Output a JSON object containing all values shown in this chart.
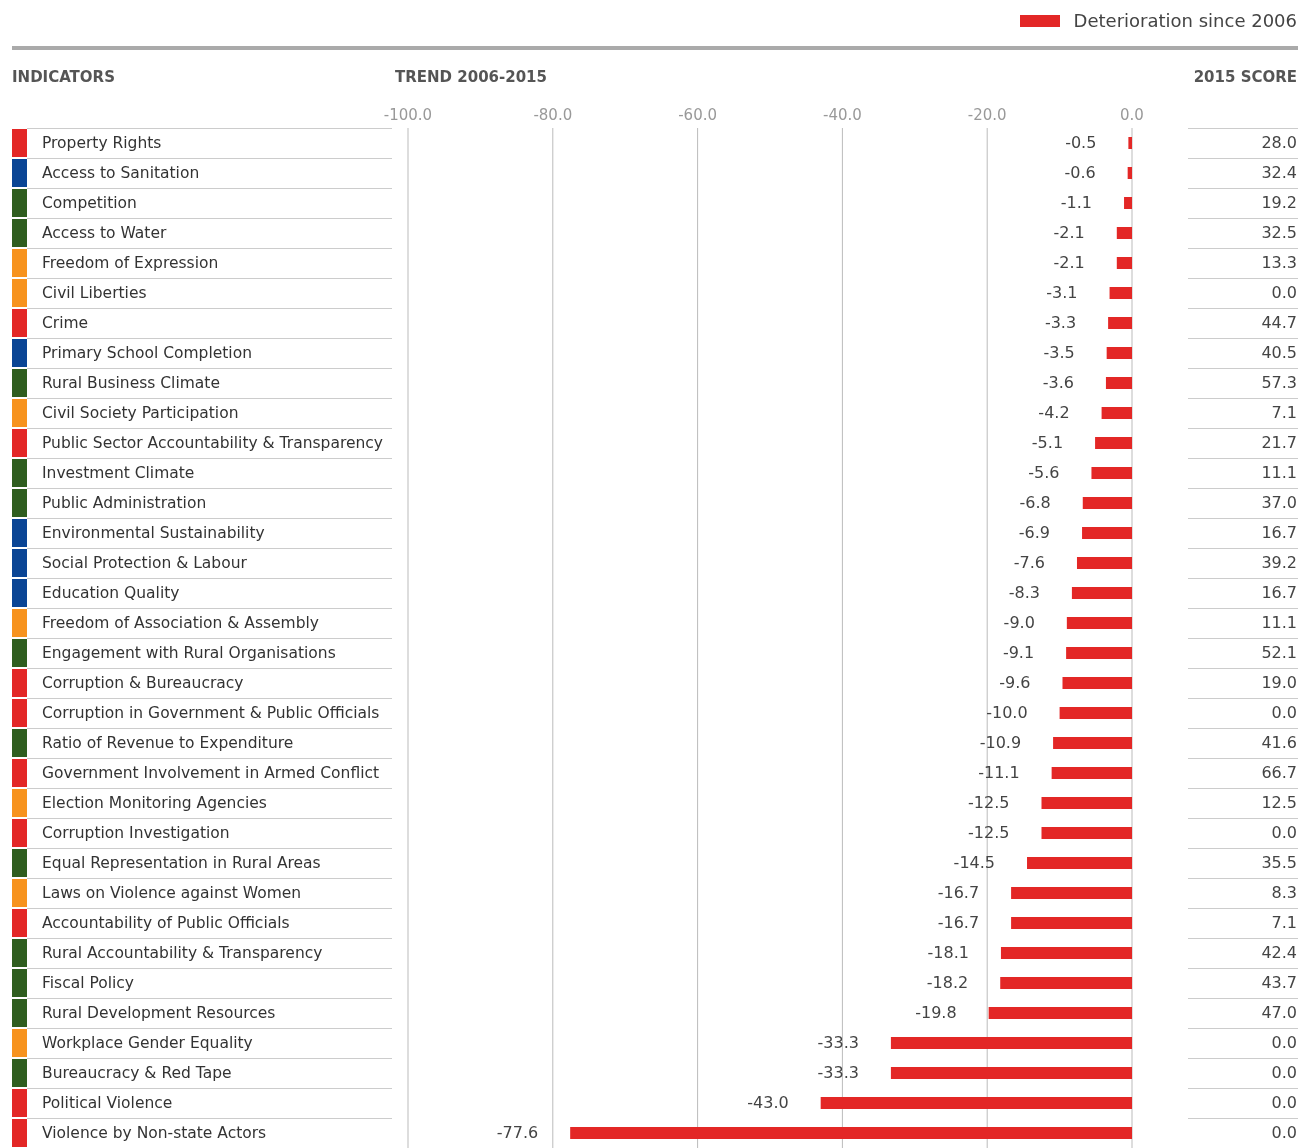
{
  "chart_data": [
    {
      "type": "bar",
      "orientation": "horizontal",
      "title": "TREND 2006-2015",
      "ylabel": "INDICATORS",
      "categories": [
        "Property Rights",
        "Access to Sanitation",
        "Competition",
        "Access to Water",
        "Freedom of Expression",
        "Civil Liberties",
        "Crime",
        "Primary School Completion",
        "Rural Business Climate",
        "Civil Society Participation",
        "Public Sector Accountability & Transparency",
        "Investment Climate",
        "Public Administration",
        "Environmental Sustainability",
        "Social Protection & Labour",
        "Education Quality",
        "Freedom of Association & Assembly",
        "Engagement with Rural Organisations",
        "Corruption & Bureaucracy",
        "Corruption in Government & Public Officials",
        "Ratio of Revenue to Expenditure",
        "Government Involvement in Armed Conflict",
        "Election Monitoring Agencies",
        "Corruption Investigation",
        "Equal Representation in Rural Areas",
        "Laws on Violence against Women",
        "Accountability of Public Officials",
        "Rural Accountability & Transparency",
        "Fiscal Policy",
        "Rural Development Resources",
        "Workplace Gender Equality",
        "Bureaucracy & Red Tape",
        "Political Violence",
        "Violence by Non-state Actors"
      ],
      "series": [
        {
          "name": "Deterioration since 2006",
          "color": "#e32726",
          "values": [
            -0.5,
            -0.6,
            -1.1,
            -2.1,
            -2.1,
            -3.1,
            -3.3,
            -3.5,
            -3.6,
            -4.2,
            -5.1,
            -5.6,
            -6.8,
            -6.9,
            -7.6,
            -8.3,
            -9.0,
            -9.1,
            -9.6,
            -10.0,
            -10.9,
            -11.1,
            -12.5,
            -12.5,
            -14.5,
            -16.7,
            -16.7,
            -18.1,
            -18.2,
            -19.8,
            -33.3,
            -33.3,
            -43.0,
            -77.6
          ],
          "value_labels": [
            "-0.5",
            "-0.6",
            "-1.1",
            "-2.1",
            "-2.1",
            "-3.1",
            "-3.3",
            "-3.5",
            "-3.6",
            "-4.2",
            "-5.1",
            "-5.6",
            "-6.8",
            "-6.9",
            "-7.6",
            "-8.3",
            "-9.0",
            "-9.1",
            "-9.6",
            "-10.0",
            "-10.9",
            "-11.1",
            "-12.5",
            "-12.5",
            "-14.5",
            "-16.7",
            "-16.7",
            "-18.1",
            "-18.2",
            "-19.8",
            "-33.3",
            "-33.3",
            "-43.0",
            "-77.6"
          ]
        }
      ],
      "xlim": [
        -100,
        0
      ],
      "xticks": [
        {
          "value": -100,
          "label": "-100.0"
        },
        {
          "value": -80,
          "label": "-80.0"
        },
        {
          "value": -60,
          "label": "-60.0"
        },
        {
          "value": -40,
          "label": "-40.0"
        },
        {
          "value": -20,
          "label": "-20.0"
        },
        {
          "value": 0,
          "label": "0.0"
        }
      ],
      "grid": "x",
      "legend": "top right"
    },
    {
      "type": "other",
      "title": "2015 SCORE",
      "value_labels": [
        "28.0",
        "32.4",
        "19.2",
        "32.5",
        "13.3",
        "0.0",
        "44.7",
        "40.5",
        "57.3",
        "7.1",
        "21.7",
        "11.1",
        "37.0",
        "16.7",
        "39.2",
        "16.7",
        "11.1",
        "52.1",
        "19.0",
        "0.0",
        "41.6",
        "66.7",
        "12.5",
        "0.0",
        "35.5",
        "8.3",
        "7.1",
        "42.4",
        "43.7",
        "47.0",
        "0.0",
        "0.0",
        "0.0",
        "0.0"
      ],
      "colors": [
        "#e32726",
        "#0a4595",
        "#2f5e1f",
        "#2f5e1f",
        "#f7931e",
        "#f7931e",
        "#e32726",
        "#0a4595",
        "#2f5e1f",
        "#f7931e",
        "#e32726",
        "#2f5e1f",
        "#2f5e1f",
        "#0a4595",
        "#0a4595",
        "#0a4595",
        "#f7931e",
        "#2f5e1f",
        "#e32726",
        "#e32726",
        "#2f5e1f",
        "#e32726",
        "#f7931e",
        "#e32726",
        "#2f5e1f",
        "#f7931e",
        "#e32726",
        "#2f5e1f",
        "#2f5e1f",
        "#2f5e1f",
        "#f7931e",
        "#2f5e1f",
        "#e32726",
        "#e32726"
      ]
    }
  ]
}
